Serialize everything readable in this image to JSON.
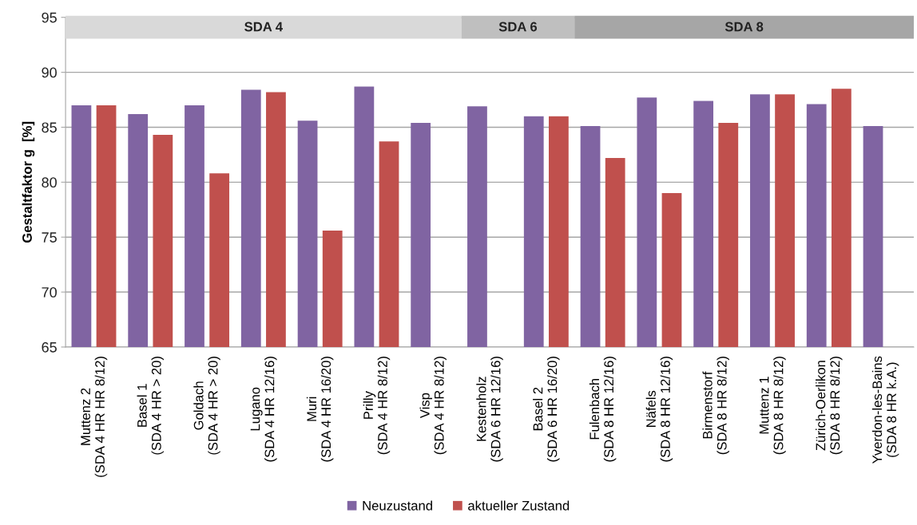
{
  "chart_data": {
    "type": "bar",
    "categories": [
      "Muttenz 2\n(SDA 4 HR HR 8/12)",
      "Basel 1\n(SDA 4 HR > 20)",
      "Goldach\n(SDA 4 HR > 20)",
      "Lugano\n(SDA 4 HR 12/16)",
      "Muri\n(SDA 4 HR 16/20)",
      "Prilly\n(SDA 4 HR 8/12)",
      "Visp\n(SDA 4 HR 8/12)",
      "Kestenholz\n(SDA 6 HR 12/16)",
      "Basel 2\n(SDA 6 HR 16/20)",
      "Fulenbach\n(SDA 8 HR 12/16)",
      "Näfels\n(SDA 8 HR 12/16)",
      "Birmenstorf\n(SDA 8 HR 8/12)",
      "Muttenz 1\n(SDA 8 HR 8/12)",
      "Zürich-Oerlikon\n(SDA 8 HR 8/12)",
      "Yverdon-les-Bains\n(SDA 8 HR k.A.)"
    ],
    "series": [
      {
        "name": "Neuzustand",
        "color": "#8064a2",
        "values": [
          87.0,
          86.2,
          87.0,
          88.4,
          85.6,
          88.7,
          85.4,
          86.9,
          86.0,
          85.1,
          87.7,
          87.4,
          88.0,
          87.1,
          85.1
        ]
      },
      {
        "name": "aktueller Zustand",
        "color": "#c0504d",
        "values": [
          87.0,
          84.3,
          80.8,
          88.2,
          75.6,
          83.7,
          null,
          null,
          86.0,
          82.2,
          79.0,
          85.4,
          88.0,
          88.5,
          null
        ]
      }
    ],
    "ylabel": "Gestaltfaktor g  [%]",
    "ylim": [
      65,
      95
    ],
    "yticks": [
      65,
      70,
      75,
      80,
      85,
      90,
      95
    ],
    "grid": "y",
    "legend": "bottom",
    "bands": [
      {
        "axis": "x",
        "from": "Muttenz 2\n(SDA 4 HR HR 8/12)",
        "to": "Visp\n(SDA 4 HR 8/12)",
        "label": "SDA 4",
        "color": "#d9d9d9"
      },
      {
        "axis": "x",
        "from": "Kestenholz\n(SDA 6 HR 12/16)",
        "to": "Basel 2\n(SDA 6 HR 16/20)",
        "label": "SDA 6",
        "color": "#bfbfbf"
      },
      {
        "axis": "x",
        "from": "Fulenbach\n(SDA 8 HR 12/16)",
        "to": "Yverdon-les-Bains\n(SDA 8 HR k.A.)",
        "label": "SDA 8",
        "color": "#a6a6a6"
      }
    ]
  }
}
